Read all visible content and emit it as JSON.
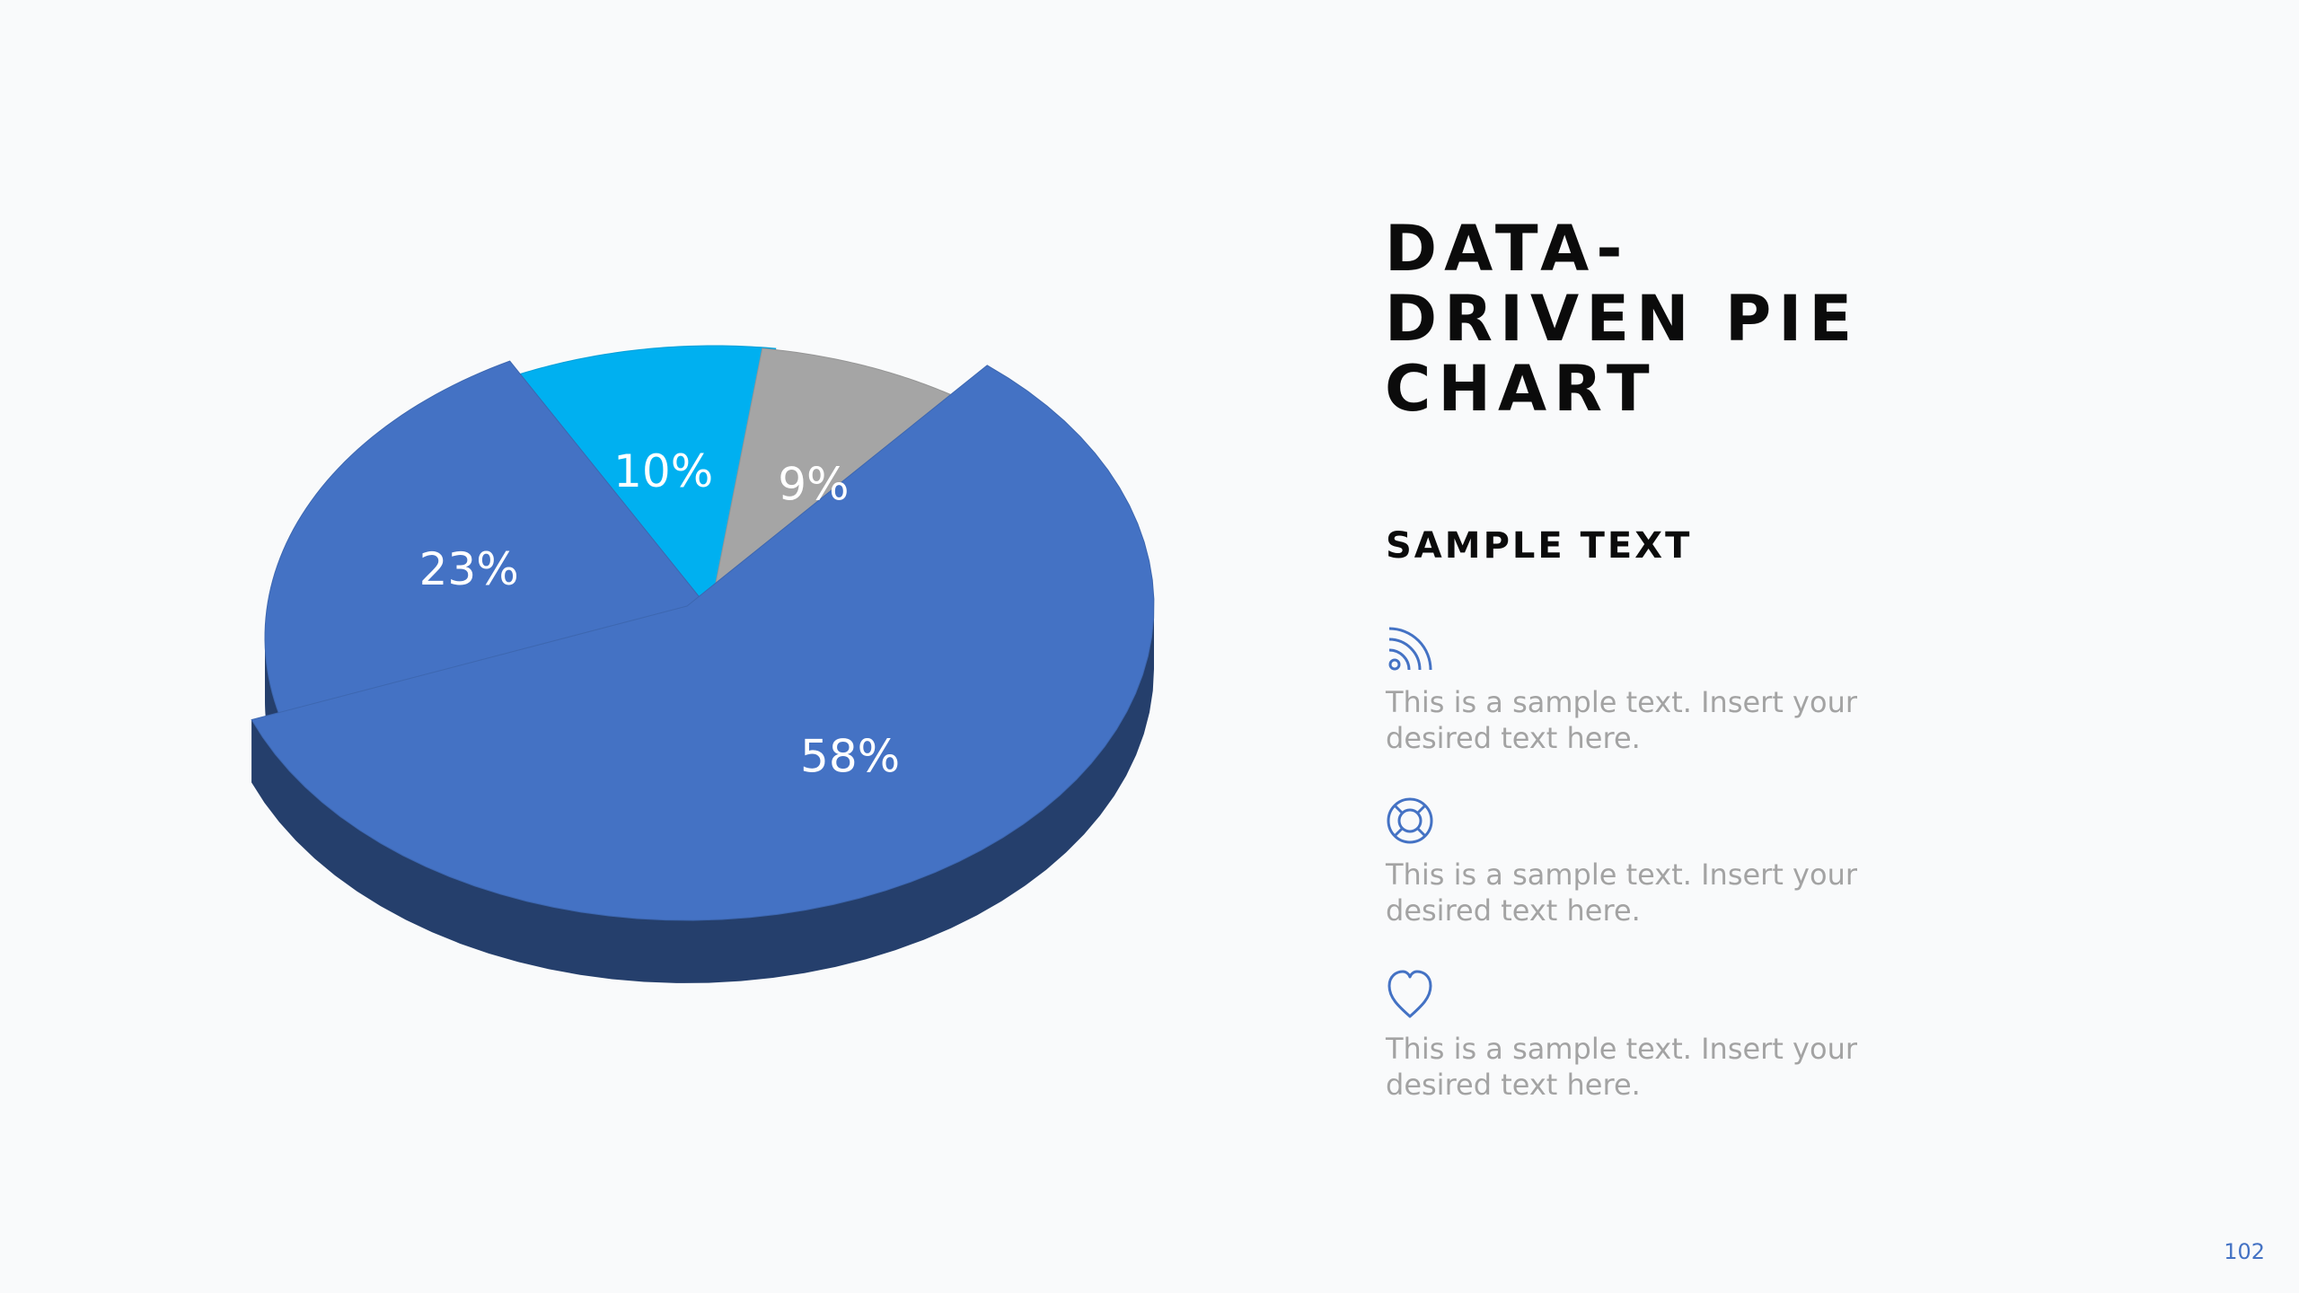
{
  "title": "DATA-\nDRIVEN PIE\nCHART",
  "subtitle": "SAMPLE TEXT",
  "features": [
    {
      "icon": "wifi-icon",
      "text": "This is a sample text. Insert your desired text here."
    },
    {
      "icon": "lifebuoy-icon",
      "text": "This is a sample text. Insert your desired text here."
    },
    {
      "icon": "heart-icon",
      "text": "This is a sample text. Insert your desired text here."
    }
  ],
  "page_number": "102",
  "colors": {
    "primary_blue": "#4472c4",
    "bright_blue": "#00b0f0",
    "gray": "#a5a5a5",
    "text_gray": "#a3a3a3",
    "title": "#0b0b0b"
  },
  "chart_data": {
    "type": "pie",
    "style": "3d-exploded",
    "slices": [
      {
        "label": "58%",
        "value": 58,
        "color": "#4472c4"
      },
      {
        "label": "23%",
        "value": 23,
        "color": "#4472c4"
      },
      {
        "label": "10%",
        "value": 10,
        "color": "#00b0f0"
      },
      {
        "label": "9%",
        "value": 9,
        "color": "#a5a5a5"
      }
    ]
  }
}
